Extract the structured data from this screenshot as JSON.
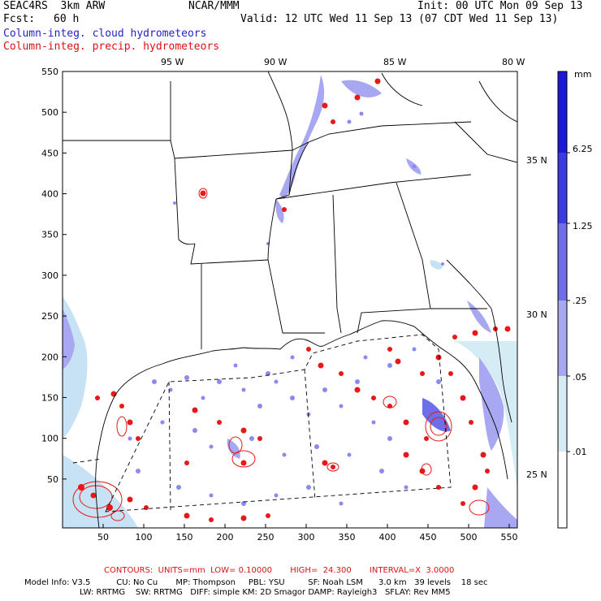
{
  "header": {
    "model": "SEAC4RS  3km ARW",
    "org": "NCAR/MMM",
    "init": "Init: 00 UTC Mon 09 Sep 13",
    "fcst_label": "Fcst:",
    "fcst_value": "60 h",
    "valid": "Valid: 12 UTC Wed 11 Sep 13 (07 CDT Wed 11 Sep 13)",
    "field_cloud": "Column-integ. cloud hydrometeors",
    "field_precip": "Column-integ. precip. hydrometeors"
  },
  "map": {
    "lon_labels": [
      "95 W",
      "90 W",
      "85 W",
      "80 W"
    ],
    "lat_labels": [
      "35 N",
      "30 N",
      "25 N"
    ],
    "y_ticks": [
      "550",
      "500",
      "450",
      "400",
      "350",
      "300",
      "250",
      "200",
      "150",
      "100",
      "50"
    ],
    "x_ticks": [
      "50",
      "100",
      "150",
      "200",
      "250",
      "300",
      "350",
      "400",
      "450",
      "500",
      "550"
    ]
  },
  "colorbar": {
    "unit": "mm",
    "labels": [
      "6.25",
      "1.25",
      ".25",
      ".05",
      ".01"
    ],
    "colors": [
      "#1a1ad6",
      "#3b3be0",
      "#6e6ee8",
      "#a8a8f2",
      "#d6ecf5",
      "#ffffff"
    ]
  },
  "footer": {
    "contours": "CONTOURS:  UNITS=mm  LOW= 0.10000       HIGH=  24.300       INTERVAL=X  3.0000",
    "line1": "Model Info: V3.5          CU: No Cu       MP: Thompson     PBL: YSU         SF: Noah LSM      3.0 km   39 levels    18 sec",
    "line2": "LW: RRTMG    SW: RRTMG   DIFF: simple KM: 2D Smagor DAMP: Rayleigh3   SFLAY: Rev MM5"
  }
}
